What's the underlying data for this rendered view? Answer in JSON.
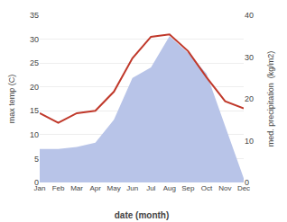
{
  "chart_data": {
    "type": "line",
    "xlabel": "date (month)",
    "ylabel": "max temp (C)",
    "y2label": "med. precipitation  (kg/m2)",
    "categories": [
      "Jan",
      "Feb",
      "Mar",
      "Apr",
      "May",
      "Jun",
      "Jul",
      "Aug",
      "Sep",
      "Oct",
      "Nov",
      "Dec"
    ],
    "series": [
      {
        "type": "area",
        "axis": "y2",
        "color": "#b8c4e8",
        "values": [
          8.0,
          8.0,
          8.5,
          9.5,
          15.0,
          25.0,
          27.5,
          35.0,
          31.0,
          26.0,
          13.5,
          1.0
        ]
      },
      {
        "type": "line",
        "color": "#c0392b",
        "values": [
          14.5,
          12.5,
          14.5,
          15.0,
          19.0,
          26.0,
          30.5,
          31.0,
          27.5,
          22.0,
          17.0,
          15.5
        ]
      }
    ],
    "ylim": [
      0,
      35
    ],
    "yticks": [
      0,
      5,
      10,
      15,
      20,
      25,
      30,
      35
    ],
    "y2lim": [
      0,
      40
    ],
    "y2ticks": [
      0,
      10,
      20,
      30,
      40
    ],
    "grid": true
  }
}
